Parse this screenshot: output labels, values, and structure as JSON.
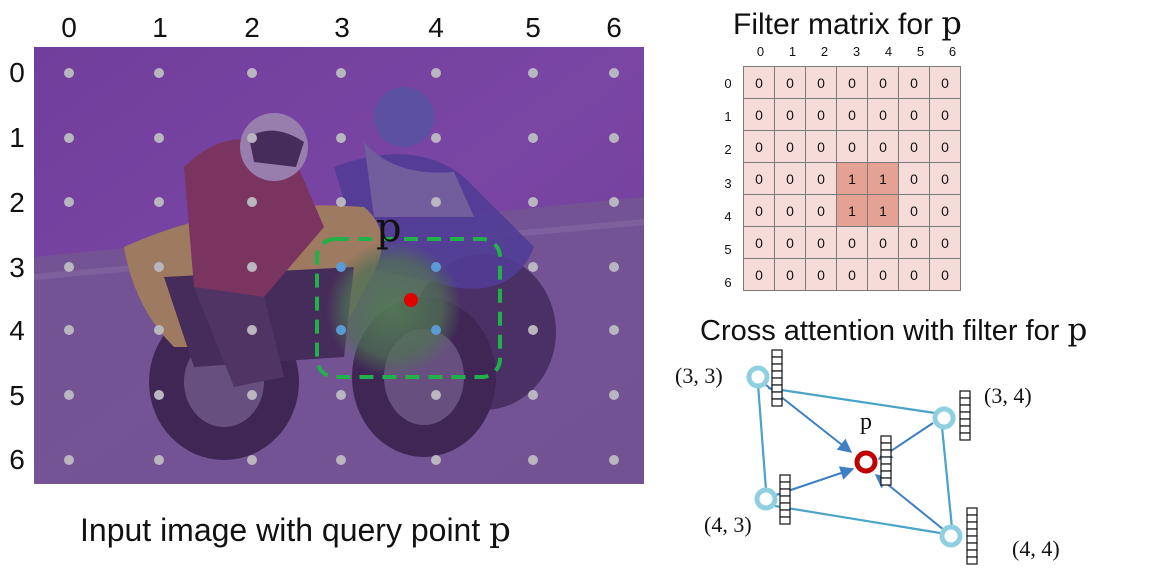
{
  "input_image": {
    "col_labels": [
      "0",
      "1",
      "2",
      "3",
      "4",
      "5",
      "6"
    ],
    "row_labels": [
      "0",
      "1",
      "2",
      "3",
      "4",
      "5",
      "6"
    ],
    "query_label": "p",
    "caption": "Input image with query point ",
    "caption_symbol": "p",
    "colors": {
      "grid_dot": "#b9b6c0",
      "neighbor_dot": "#5b9bd5",
      "query_dot": "#e00000",
      "box": "#22b04a",
      "tint": "#7a3fa8"
    }
  },
  "filter_matrix": {
    "title": "Filter matrix for ",
    "title_symbol": "p",
    "col_labels": [
      "0",
      "1",
      "2",
      "3",
      "4",
      "5",
      "6"
    ],
    "row_labels": [
      "0",
      "1",
      "2",
      "3",
      "4",
      "5",
      "6"
    ],
    "rows": [
      [
        "0",
        "0",
        "0",
        "0",
        "0",
        "0",
        "0"
      ],
      [
        "0",
        "0",
        "0",
        "0",
        "0",
        "0",
        "0"
      ],
      [
        "0",
        "0",
        "0",
        "0",
        "0",
        "0",
        "0"
      ],
      [
        "0",
        "0",
        "0",
        "1",
        "1",
        "0",
        "0"
      ],
      [
        "0",
        "0",
        "0",
        "1",
        "1",
        "0",
        "0"
      ],
      [
        "0",
        "0",
        "0",
        "0",
        "0",
        "0",
        "0"
      ],
      [
        "0",
        "0",
        "0",
        "0",
        "0",
        "0",
        "0"
      ]
    ],
    "colors": {
      "cell": "#f5dcd9",
      "active": "#e5a193",
      "border": "#7a7a7a"
    }
  },
  "cross_attention": {
    "title": "Cross attention with filter for ",
    "title_symbol": "p",
    "nodes": [
      {
        "id": "n33",
        "label": "(3, 3)"
      },
      {
        "id": "n34",
        "label": "(3, 4)"
      },
      {
        "id": "n43",
        "label": "(4, 3)"
      },
      {
        "id": "n44",
        "label": "(4, 4)"
      }
    ],
    "query_label": "p",
    "colors": {
      "edge": "#4aa3c8",
      "node": "#8fd0e0",
      "query": "#c00000"
    }
  }
}
